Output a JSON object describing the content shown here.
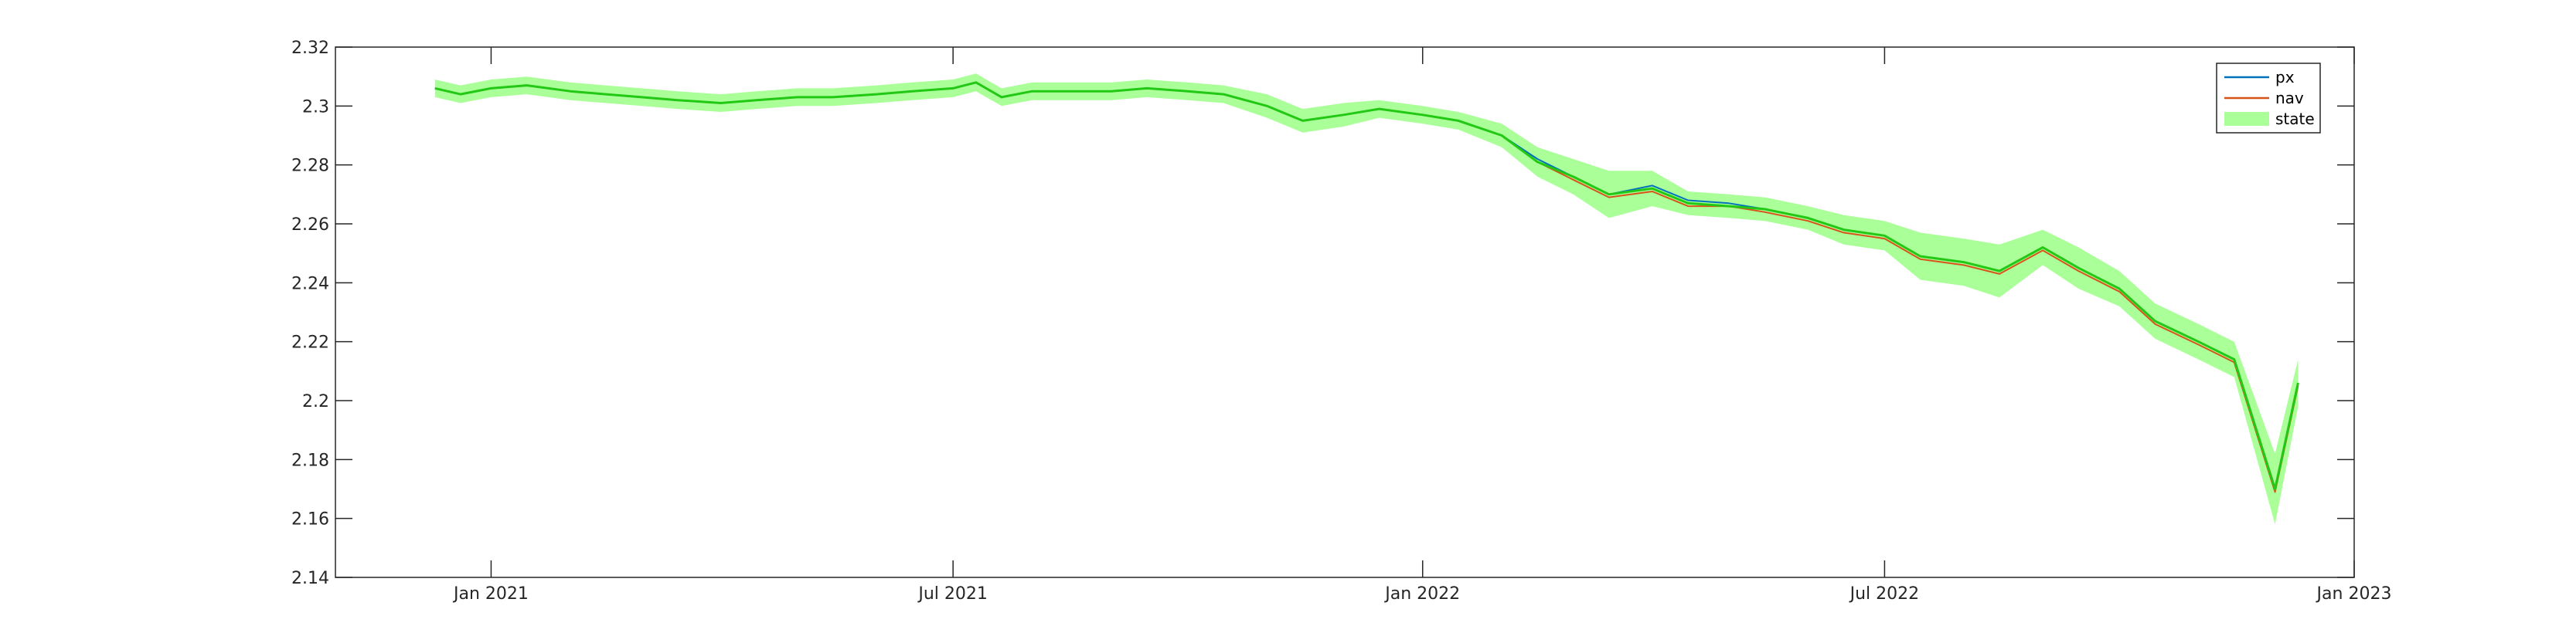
{
  "chart_data": {
    "type": "line",
    "title": "",
    "xlabel": "",
    "ylabel": "",
    "xlim": [
      "2020-11-01",
      "2023-01-01"
    ],
    "ylim": [
      2.14,
      2.32
    ],
    "grid": false,
    "legend": "top-right",
    "x_ticks": [
      {
        "date": "2021-01-01",
        "label": "Jan 2021"
      },
      {
        "date": "2021-07-01",
        "label": "Jul 2021"
      },
      {
        "date": "2022-01-01",
        "label": "Jan 2022"
      },
      {
        "date": "2022-07-01",
        "label": "Jul 2022"
      },
      {
        "date": "2023-01-01",
        "label": "Jan 2023"
      }
    ],
    "y_ticks": [
      {
        "value": 2.14,
        "label": "2.14"
      },
      {
        "value": 2.16,
        "label": "2.16"
      },
      {
        "value": 2.18,
        "label": "2.18"
      },
      {
        "value": 2.2,
        "label": "2.2"
      },
      {
        "value": 2.22,
        "label": "2.22"
      },
      {
        "value": 2.24,
        "label": "2.24"
      },
      {
        "value": 2.26,
        "label": "2.26"
      },
      {
        "value": 2.28,
        "label": "2.28"
      },
      {
        "value": 2.3,
        "label": "2.3"
      },
      {
        "value": 2.32,
        "label": "2.32"
      }
    ],
    "x": [
      "2020-12-10",
      "2020-12-20",
      "2021-01-01",
      "2021-01-15",
      "2021-02-01",
      "2021-02-15",
      "2021-03-01",
      "2021-03-15",
      "2021-04-01",
      "2021-04-15",
      "2021-05-01",
      "2021-05-15",
      "2021-06-01",
      "2021-06-15",
      "2021-07-01",
      "2021-07-10",
      "2021-07-20",
      "2021-08-01",
      "2021-08-15",
      "2021-09-01",
      "2021-09-15",
      "2021-10-01",
      "2021-10-15",
      "2021-11-01",
      "2021-11-15",
      "2021-12-01",
      "2021-12-15",
      "2022-01-01",
      "2022-01-15",
      "2022-02-01",
      "2022-02-15",
      "2022-03-01",
      "2022-03-15",
      "2022-04-01",
      "2022-04-15",
      "2022-05-01",
      "2022-05-15",
      "2022-06-01",
      "2022-06-15",
      "2022-07-01",
      "2022-07-15",
      "2022-08-01",
      "2022-08-15",
      "2022-09-01",
      "2022-09-15",
      "2022-10-01",
      "2022-10-15",
      "2022-11-01",
      "2022-11-15",
      "2022-12-01",
      "2022-12-10"
    ],
    "series": [
      {
        "name": "px",
        "color": "#0072bd",
        "values": [
          2.306,
          2.304,
          2.306,
          2.307,
          2.305,
          2.304,
          2.303,
          2.302,
          2.301,
          2.302,
          2.303,
          2.303,
          2.304,
          2.305,
          2.306,
          2.308,
          2.303,
          2.305,
          2.305,
          2.305,
          2.306,
          2.305,
          2.304,
          2.3,
          2.295,
          2.297,
          2.299,
          2.297,
          2.295,
          2.29,
          2.282,
          2.276,
          2.27,
          2.273,
          2.268,
          2.267,
          2.265,
          2.262,
          2.258,
          2.256,
          2.249,
          2.247,
          2.244,
          2.252,
          2.245,
          2.238,
          2.227,
          2.22,
          2.214,
          2.17,
          2.206
        ]
      },
      {
        "name": "nav",
        "color": "#d95319",
        "values": [
          2.306,
          2.304,
          2.306,
          2.307,
          2.305,
          2.304,
          2.303,
          2.302,
          2.301,
          2.302,
          2.303,
          2.303,
          2.304,
          2.305,
          2.306,
          2.308,
          2.303,
          2.305,
          2.305,
          2.305,
          2.306,
          2.305,
          2.304,
          2.3,
          2.295,
          2.297,
          2.299,
          2.297,
          2.295,
          2.29,
          2.281,
          2.275,
          2.269,
          2.271,
          2.266,
          2.266,
          2.264,
          2.261,
          2.257,
          2.255,
          2.248,
          2.246,
          2.243,
          2.251,
          2.244,
          2.237,
          2.226,
          2.219,
          2.213,
          2.169,
          2.205
        ]
      },
      {
        "name": "state",
        "color": "#22c814",
        "band_color": "#aaff99",
        "values": [
          2.306,
          2.304,
          2.306,
          2.307,
          2.305,
          2.304,
          2.303,
          2.302,
          2.301,
          2.302,
          2.303,
          2.303,
          2.304,
          2.305,
          2.306,
          2.308,
          2.303,
          2.305,
          2.305,
          2.305,
          2.306,
          2.305,
          2.304,
          2.3,
          2.295,
          2.297,
          2.299,
          2.297,
          2.295,
          2.29,
          2.281,
          2.276,
          2.27,
          2.272,
          2.267,
          2.266,
          2.265,
          2.262,
          2.258,
          2.256,
          2.249,
          2.247,
          2.244,
          2.252,
          2.245,
          2.238,
          2.227,
          2.22,
          2.214,
          2.17,
          2.206
        ],
        "band": [
          0.003,
          0.003,
          0.003,
          0.003,
          0.003,
          0.003,
          0.003,
          0.003,
          0.003,
          0.003,
          0.003,
          0.003,
          0.003,
          0.003,
          0.003,
          0.003,
          0.003,
          0.003,
          0.003,
          0.003,
          0.003,
          0.003,
          0.003,
          0.004,
          0.004,
          0.004,
          0.003,
          0.003,
          0.003,
          0.004,
          0.005,
          0.006,
          0.008,
          0.006,
          0.004,
          0.004,
          0.004,
          0.004,
          0.005,
          0.005,
          0.008,
          0.008,
          0.009,
          0.006,
          0.007,
          0.006,
          0.006,
          0.006,
          0.006,
          0.012,
          0.008
        ]
      }
    ]
  }
}
